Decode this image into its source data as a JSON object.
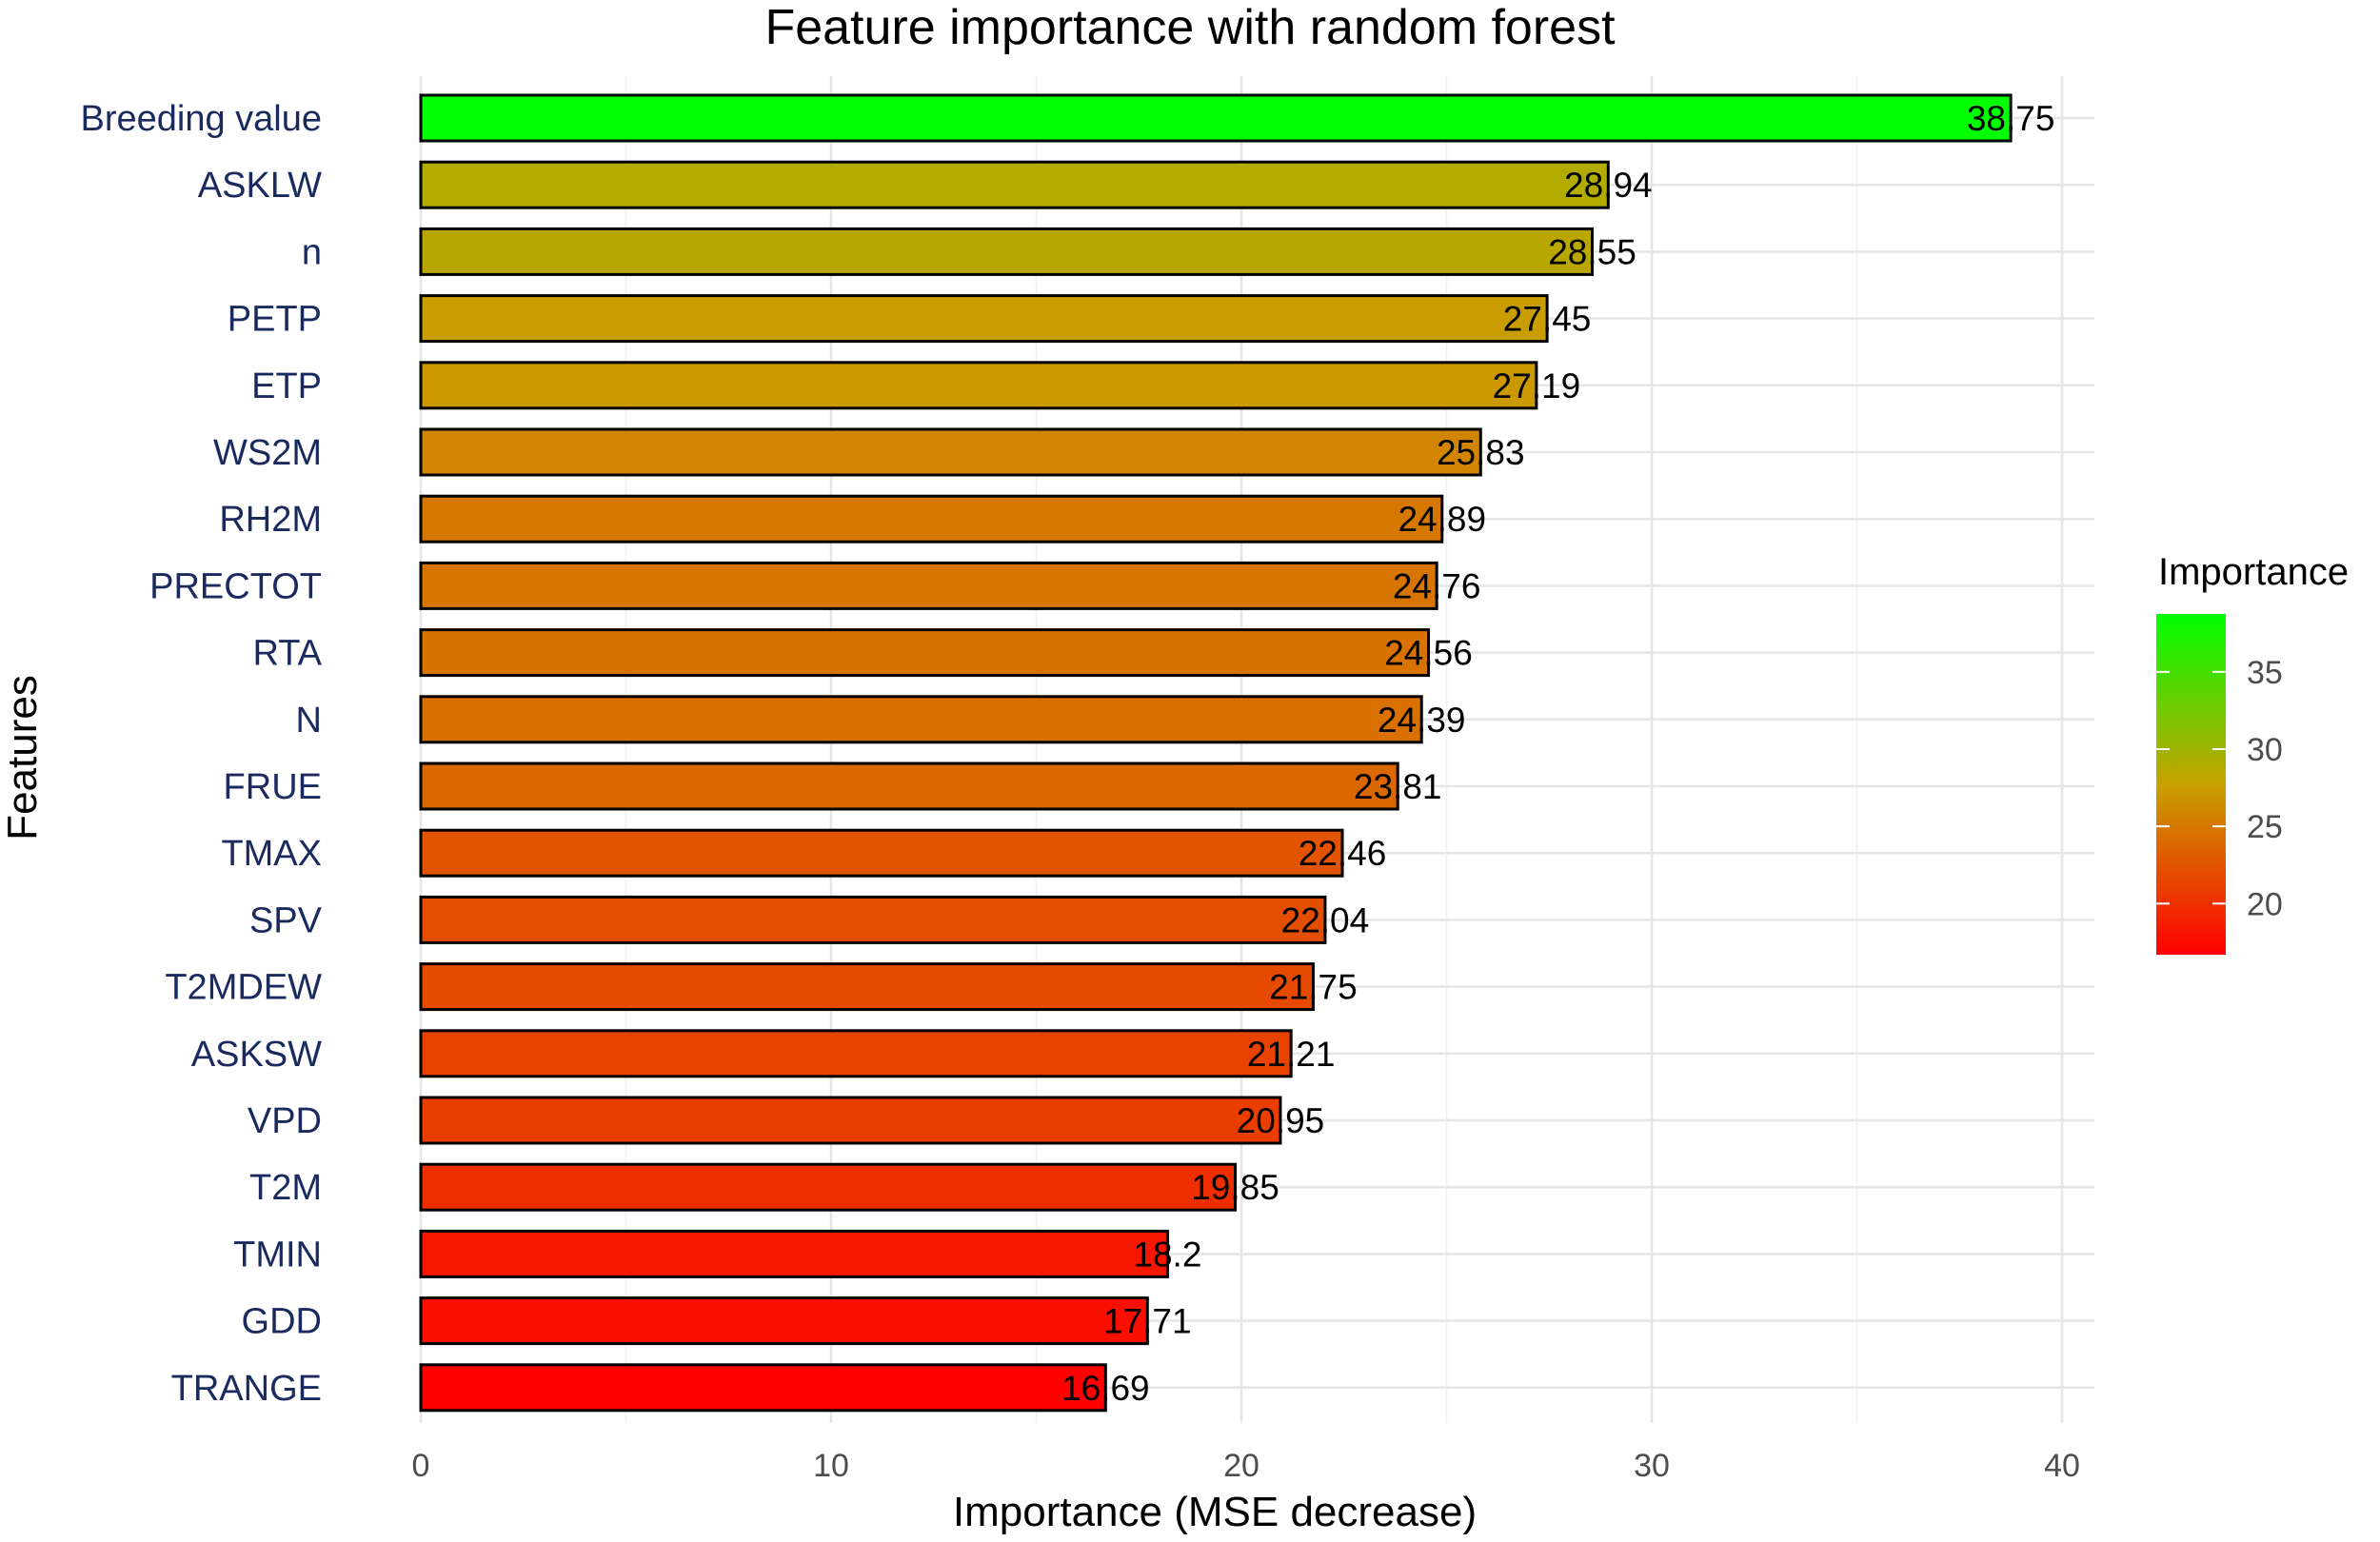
{
  "chart_data": {
    "type": "bar",
    "orientation": "horizontal",
    "title": "Feature importance with random forest",
    "xlabel": "Importance (MSE decrease)",
    "ylabel": "Features",
    "xlim": [
      0,
      40
    ],
    "xticks": [
      0,
      10,
      20,
      30,
      40
    ],
    "grid": true,
    "categories": [
      "Breeding value",
      "ASKLW",
      "n",
      "PETP",
      "ETP",
      "WS2M",
      "RH2M",
      "PRECTOT",
      "RTA",
      "N",
      "FRUE",
      "TMAX",
      "SPV",
      "T2MDEW",
      "ASKSW",
      "VPD",
      "T2M",
      "TMIN",
      "GDD",
      "TRANGE"
    ],
    "values": [
      38.75,
      28.94,
      28.55,
      27.45,
      27.19,
      25.83,
      24.89,
      24.76,
      24.56,
      24.39,
      23.81,
      22.46,
      22.04,
      21.75,
      21.21,
      20.95,
      19.85,
      18.2,
      17.71,
      16.69
    ],
    "data_labels": [
      "38.75",
      "28.94",
      "28.55",
      "27.45",
      "27.19",
      "25.83",
      "24.89",
      "24.76",
      "24.56",
      "24.39",
      "23.81",
      "22.46",
      "22.04",
      "21.75",
      "21.21",
      "20.95",
      "19.85",
      "18.2",
      "17.71",
      "16.69"
    ],
    "legend": {
      "title": "Importance",
      "position": "right",
      "ticks": [
        20,
        25,
        30,
        35
      ],
      "range": [
        16.69,
        38.75
      ],
      "color_low": "#ff0000",
      "color_high": "#00ff00"
    }
  }
}
